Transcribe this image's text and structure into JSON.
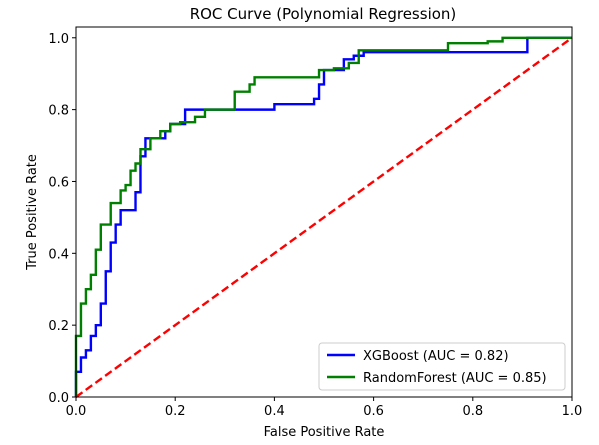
{
  "chart_data": {
    "type": "line",
    "title": "ROC Curve (Polynomial Regression)",
    "xlabel": "False Positive Rate",
    "ylabel": "True Positive Rate",
    "xlim": [
      0,
      1
    ],
    "ylim": [
      0,
      1.03
    ],
    "x_ticks": [
      "0.0",
      "0.2",
      "0.4",
      "0.6",
      "0.8",
      "1.0"
    ],
    "y_ticks": [
      "0.0",
      "0.2",
      "0.4",
      "0.6",
      "0.8",
      "1.0"
    ],
    "grid": false,
    "legend_position": "lower-right",
    "series": [
      {
        "name": "XGBoost (AUC = 0.82)",
        "color": "#0000ff",
        "style": "solid",
        "x": [
          0,
          0,
          0.01,
          0.01,
          0.02,
          0.02,
          0.03,
          0.03,
          0.04,
          0.04,
          0.05,
          0.05,
          0.06,
          0.06,
          0.07,
          0.07,
          0.08,
          0.08,
          0.09,
          0.09,
          0.12,
          0.12,
          0.13,
          0.13,
          0.14,
          0.14,
          0.18,
          0.18,
          0.19,
          0.19,
          0.22,
          0.22,
          0.4,
          0.4,
          0.48,
          0.48,
          0.49,
          0.49,
          0.5,
          0.5,
          0.54,
          0.54,
          0.56,
          0.56,
          0.58,
          0.58,
          0.91,
          0.91,
          1.0
        ],
        "y": [
          0,
          0.07,
          0.07,
          0.11,
          0.11,
          0.13,
          0.13,
          0.17,
          0.17,
          0.2,
          0.2,
          0.26,
          0.26,
          0.35,
          0.35,
          0.43,
          0.43,
          0.48,
          0.48,
          0.52,
          0.52,
          0.57,
          0.57,
          0.67,
          0.67,
          0.72,
          0.72,
          0.74,
          0.74,
          0.76,
          0.76,
          0.8,
          0.8,
          0.815,
          0.815,
          0.83,
          0.83,
          0.87,
          0.87,
          0.91,
          0.91,
          0.94,
          0.94,
          0.95,
          0.95,
          0.96,
          0.96,
          1.0,
          1.0
        ]
      },
      {
        "name": "RandomForest (AUC = 0.85)",
        "color": "#008000",
        "style": "solid",
        "x": [
          0,
          0,
          0.01,
          0.01,
          0.02,
          0.02,
          0.03,
          0.03,
          0.04,
          0.04,
          0.05,
          0.05,
          0.07,
          0.07,
          0.09,
          0.09,
          0.1,
          0.1,
          0.11,
          0.11,
          0.12,
          0.12,
          0.13,
          0.13,
          0.15,
          0.15,
          0.17,
          0.17,
          0.19,
          0.19,
          0.21,
          0.21,
          0.24,
          0.24,
          0.26,
          0.26,
          0.32,
          0.32,
          0.35,
          0.35,
          0.36,
          0.36,
          0.49,
          0.49,
          0.52,
          0.52,
          0.55,
          0.55,
          0.57,
          0.57,
          0.75,
          0.75,
          0.83,
          0.83,
          0.86,
          0.86,
          1.0
        ],
        "y": [
          0,
          0.17,
          0.17,
          0.26,
          0.26,
          0.3,
          0.3,
          0.34,
          0.34,
          0.41,
          0.41,
          0.48,
          0.48,
          0.54,
          0.54,
          0.575,
          0.575,
          0.59,
          0.59,
          0.63,
          0.63,
          0.65,
          0.65,
          0.69,
          0.69,
          0.72,
          0.72,
          0.74,
          0.74,
          0.76,
          0.76,
          0.765,
          0.765,
          0.78,
          0.78,
          0.8,
          0.8,
          0.85,
          0.85,
          0.87,
          0.87,
          0.89,
          0.89,
          0.91,
          0.91,
          0.915,
          0.915,
          0.93,
          0.93,
          0.965,
          0.965,
          0.985,
          0.985,
          0.99,
          0.99,
          1.0,
          1.0
        ]
      },
      {
        "name": "",
        "color": "#ff0000",
        "style": "dashed",
        "x": [
          0,
          1
        ],
        "y": [
          0,
          1
        ]
      }
    ]
  }
}
